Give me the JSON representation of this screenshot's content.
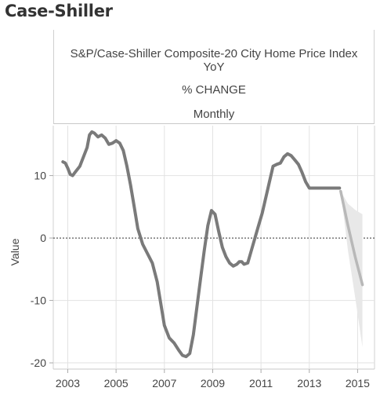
{
  "page": {
    "title": "Case-Shiller"
  },
  "header": {
    "title": "S&P/Case-Shiller Composite-20 City Home Price Index YoY",
    "subtitle": "% CHANGE",
    "frequency": "Monthly"
  },
  "chart_data": {
    "type": "line",
    "title": "S&P/Case-Shiller Composite-20 City Home Price Index YoY",
    "xlabel": "",
    "ylabel": "Value",
    "xlim": [
      2002.4,
      2015.7
    ],
    "ylim": [
      -21,
      18
    ],
    "x_ticks": [
      "2003",
      "2005",
      "2007",
      "2009",
      "2011",
      "2013",
      "2015"
    ],
    "y_ticks": [
      10,
      0,
      -10,
      -20
    ],
    "grid": true,
    "reference_line": 0,
    "colors": {
      "actual": "#7a7a7a",
      "forecast": "#b8b8b8",
      "band": "#e8e8e8",
      "grid": "#e2e2e2"
    },
    "series": [
      {
        "name": "",
        "style": "actual",
        "x": [
          2002.8,
          2002.9,
          2003.0,
          2003.1,
          2003.2,
          2003.3,
          2003.5,
          2003.6,
          2003.8,
          2003.9,
          2004.0,
          2004.1,
          2004.25,
          2004.4,
          2004.55,
          2004.7,
          2004.85,
          2005.0,
          2005.15,
          2005.3,
          2005.45,
          2005.6,
          2005.75,
          2005.9,
          2006.1,
          2006.3,
          2006.5,
          2006.7,
          2006.85,
          2007.0,
          2007.2,
          2007.4,
          2007.6,
          2007.75,
          2007.9,
          2008.05,
          2008.2,
          2008.35,
          2008.5,
          2008.65,
          2008.8,
          2008.95,
          2009.1,
          2009.25,
          2009.4,
          2009.55,
          2009.7,
          2009.85,
          2010.0,
          2010.1,
          2010.2,
          2010.3,
          2010.45,
          2010.6,
          2010.75,
          2010.9,
          2011.05,
          2011.2,
          2011.35,
          2011.5,
          2011.65,
          2011.8,
          2011.95,
          2012.1,
          2012.25,
          2012.4,
          2012.55,
          2012.7,
          2012.85,
          2013.0,
          2013.2,
          2013.35,
          2013.5,
          2013.65,
          2013.8,
          2013.95,
          2014.1,
          2014.25
        ],
        "y": [
          12.2,
          12.0,
          11.2,
          10.2,
          10.0,
          10.5,
          11.5,
          12.5,
          14.5,
          16.5,
          17.0,
          16.8,
          16.2,
          16.5,
          16.0,
          15.0,
          15.2,
          15.6,
          15.2,
          14.0,
          11.5,
          8.5,
          5.0,
          1.5,
          -1.0,
          -2.5,
          -4.0,
          -7.0,
          -10.5,
          -14.0,
          -16.0,
          -16.8,
          -18.0,
          -18.8,
          -19.0,
          -18.5,
          -15.5,
          -11.0,
          -6.5,
          -2.0,
          2.0,
          4.4,
          3.8,
          1.0,
          -1.5,
          -3.0,
          -4.0,
          -4.5,
          -4.2,
          -3.8,
          -3.8,
          -4.2,
          -4.0,
          -2.0,
          0.0,
          2.0,
          4.0,
          6.5,
          9.0,
          11.5,
          11.8,
          12.0,
          13.0,
          13.5,
          13.2,
          12.5,
          11.8,
          10.5,
          9.0,
          8.0,
          8.0,
          8.0,
          8.0,
          8.0,
          8.0,
          8.0,
          8.0,
          8.0
        ]
      },
      {
        "name": "",
        "style": "forecast",
        "x": [
          2014.3,
          2014.6,
          2014.9,
          2015.2
        ],
        "y": [
          7.5,
          2.0,
          -3.0,
          -7.5
        ]
      }
    ],
    "forecast_band": {
      "x": [
        2014.3,
        2014.6,
        2014.9,
        2015.2
      ],
      "upper": [
        7.5,
        5.5,
        4.5,
        3.8
      ],
      "lower": [
        7.5,
        -2.0,
        -9.5,
        -17.5
      ]
    }
  }
}
